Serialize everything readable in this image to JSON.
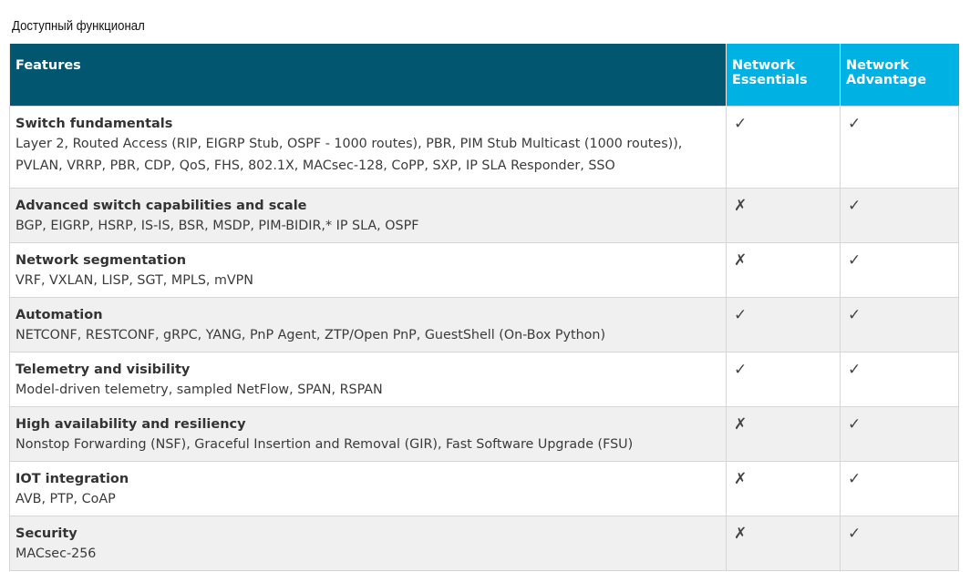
{
  "title": "Доступный функционал",
  "headers": {
    "features": "Features",
    "essentials": "Network Essentials",
    "advantage": "Network Advantage"
  },
  "colors": {
    "header_dark": "#02566f",
    "header_light": "#00b2e3",
    "row_alt": "#f0f0f0"
  },
  "rows": [
    {
      "name": "Switch fundamentals",
      "desc": "Layer 2, Routed Access (RIP, EIGRP Stub, OSPF - 1000 routes), PBR, PIM Stub Multicast (1000 routes)), PVLAN, VRRP, PBR, CDP, QoS, FHS, 802.1X, MACsec-128, CoPP, SXP, IP SLA Responder, SSO",
      "essentials": "✓",
      "advantage": "✓"
    },
    {
      "name": "Advanced switch capabilities and scale",
      "desc": "BGP, EIGRP, HSRP, IS-IS, BSR, MSDP, PIM-BIDIR,* IP SLA, OSPF",
      "essentials": "✗",
      "advantage": "✓"
    },
    {
      "name": "Network segmentation",
      "desc": "VRF, VXLAN, LISP, SGT, MPLS, mVPN",
      "essentials": "✗",
      "advantage": "✓"
    },
    {
      "name": "Automation",
      "desc": "NETCONF, RESTCONF, gRPC, YANG, PnP Agent, ZTP/Open PnP, GuestShell (On-Box Python)",
      "essentials": "✓",
      "advantage": "✓"
    },
    {
      "name": "Telemetry and visibility",
      "desc": "Model-driven telemetry, sampled NetFlow, SPAN, RSPAN",
      "essentials": "✓",
      "advantage": "✓"
    },
    {
      "name": "High availability and resiliency",
      "desc": "Nonstop Forwarding (NSF), Graceful Insertion and Removal (GIR), Fast Software Upgrade (FSU)",
      "essentials": "✗",
      "advantage": "✓"
    },
    {
      "name": "IOT integration",
      "desc": "AVB, PTP, CoAP",
      "essentials": "✗",
      "advantage": "✓"
    },
    {
      "name": "Security",
      "desc": "MACsec-256",
      "essentials": "✗",
      "advantage": "✓"
    }
  ]
}
